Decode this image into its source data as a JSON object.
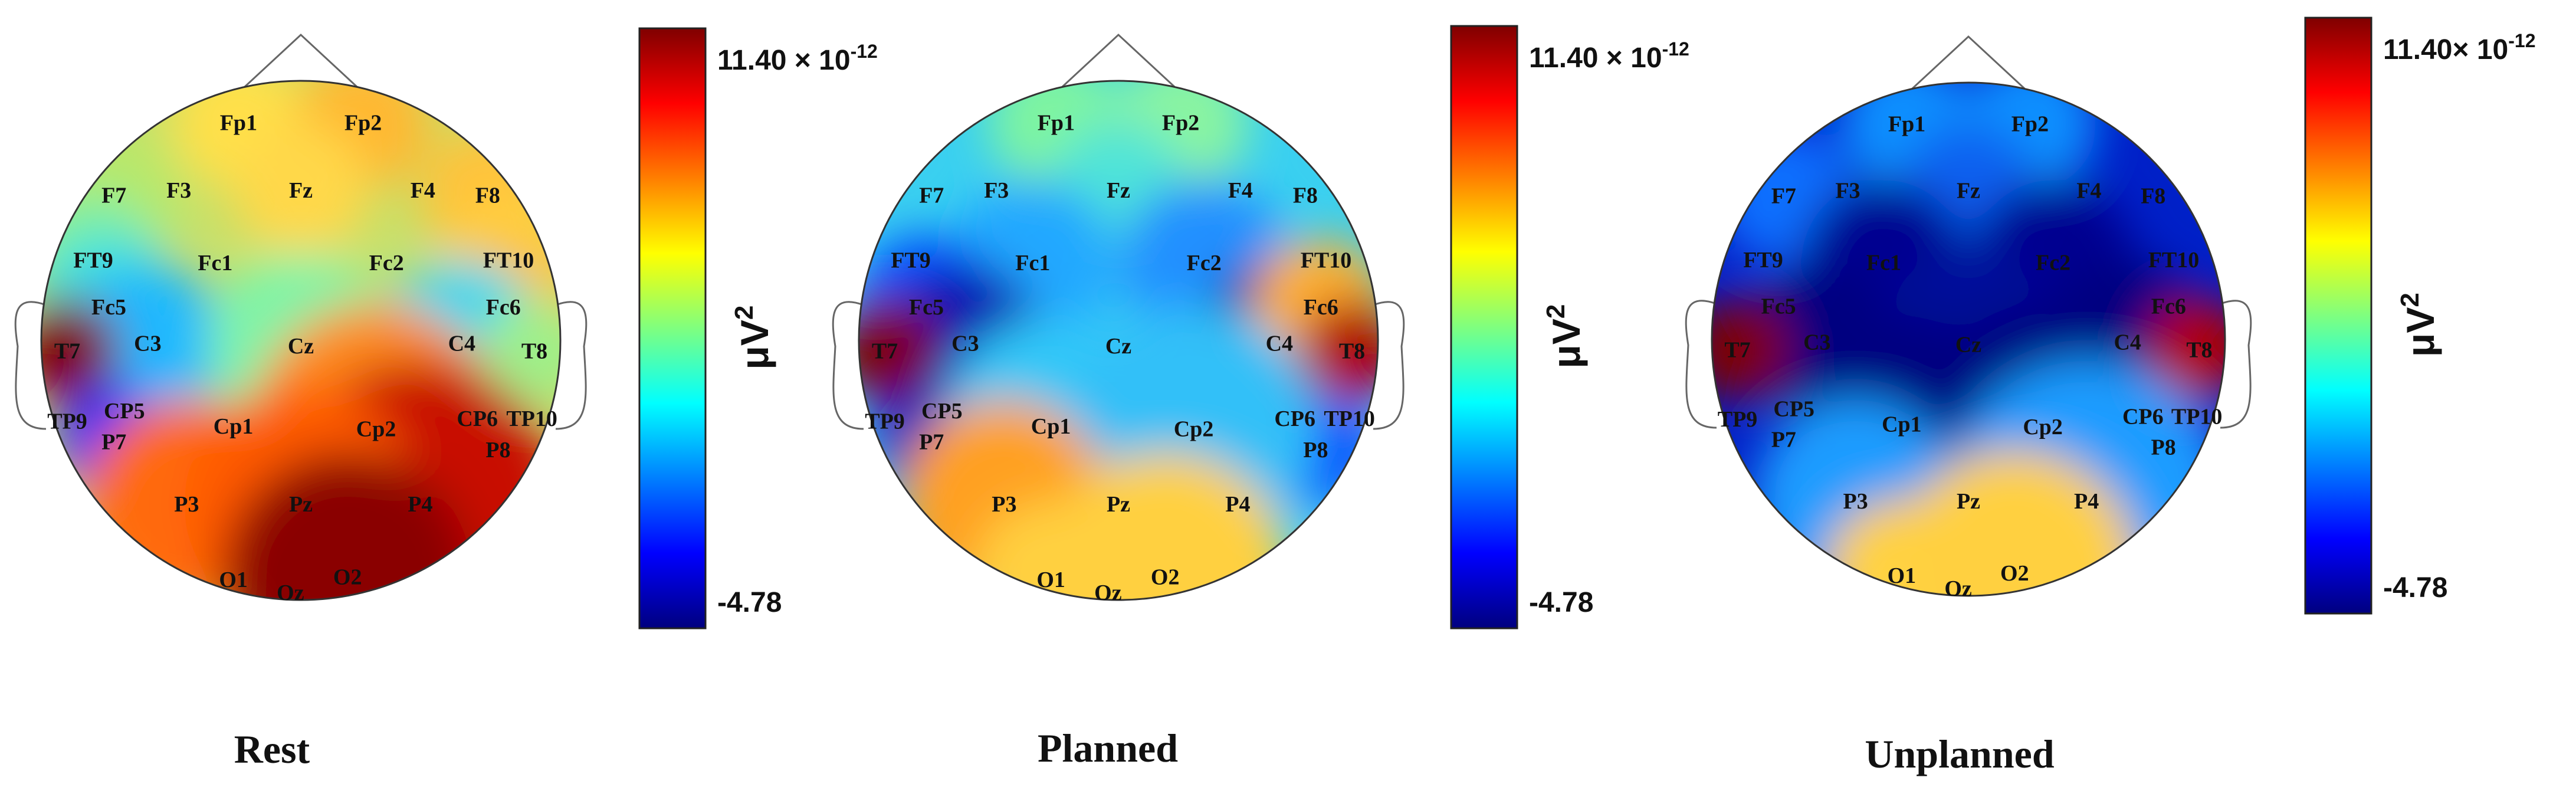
{
  "colorbar": {
    "max_label_base": "11.40",
    "max_label_sep": " × ",
    "max_label_sep_compact": "× ",
    "max_label_mantissa": "10",
    "max_label_exponent": "-12",
    "min_label": "-4.78",
    "unit_base": "μV",
    "unit_exponent": "2",
    "colormap": "jet",
    "color_stops": [
      "#00007f",
      "#0000ff",
      "#007fff",
      "#00ffff",
      "#7fff7f",
      "#ffff00",
      "#ff7f00",
      "#ff0000",
      "#7f0000"
    ]
  },
  "electrodes": [
    "Fp1",
    "Fp2",
    "F7",
    "F3",
    "Fz",
    "F4",
    "F8",
    "FT9",
    "Fc1",
    "Fc2",
    "FT10",
    "Fc5",
    "Fc6",
    "T7",
    "C3",
    "Cz",
    "C4",
    "T8",
    "TP9",
    "CP5",
    "CP6",
    "TP10",
    "P7",
    "P8",
    "Cp1",
    "Cp2",
    "P3",
    "Pz",
    "P4",
    "O1",
    "Oz",
    "O2"
  ],
  "panels": [
    {
      "condition": "Rest",
      "compact_colorbar_label": false,
      "background_color": "#c6e06a",
      "regions": [
        {
          "electrode": "Fp1",
          "color": "#ffe04a"
        },
        {
          "electrode": "Fp2",
          "color": "#ffb833"
        },
        {
          "electrode": "Fz",
          "color": "#ffd84a"
        },
        {
          "electrode": "F8",
          "color": "#ffc23a"
        },
        {
          "electrode": "FT10",
          "color": "#ffcf3f"
        },
        {
          "electrode": "Fc6",
          "color": "#ffc03a"
        },
        {
          "electrode": "F7",
          "color": "#b8e86a"
        },
        {
          "electrode": "FT9",
          "color": "#7ff0a0"
        },
        {
          "electrode": "Fc5",
          "color": "#40e0e0"
        },
        {
          "electrode": "C3",
          "color": "#1ab8ff"
        },
        {
          "electrode": "Cz",
          "color": "#7ff4a8"
        },
        {
          "electrode": "C4",
          "color": "#30d8f0"
        },
        {
          "electrode": "T7",
          "color": "#7f0000"
        },
        {
          "electrode": "P7",
          "color": "#0a28ff"
        },
        {
          "electrode": "T8",
          "color": "#9ef08a"
        },
        {
          "electrode": "Cp2",
          "color": "#ff8a1a"
        },
        {
          "electrode": "P4",
          "color": "#c81000"
        },
        {
          "electrode": "P3",
          "color": "#ff6a10"
        },
        {
          "electrode": "Pz",
          "color": "#ff5a00"
        },
        {
          "electrode": "O2",
          "color": "#8a0000"
        }
      ]
    },
    {
      "condition": "Planned",
      "compact_colorbar_label": false,
      "background_color": "#3ad0f0",
      "regions": [
        {
          "electrode": "Fp1",
          "color": "#7ff4a0"
        },
        {
          "electrode": "Fp2",
          "color": "#8af4a0"
        },
        {
          "electrode": "Fz",
          "color": "#50e4d8"
        },
        {
          "electrode": "Fc1",
          "color": "#20a8ff"
        },
        {
          "electrode": "Fc2",
          "color": "#2090ff"
        },
        {
          "electrode": "Fc5",
          "color": "#0050ff"
        },
        {
          "electrode": "C3",
          "color": "#0a10b0"
        },
        {
          "electrode": "C4",
          "color": "#00009a"
        },
        {
          "electrode": "Fc6",
          "color": "#ffb030"
        },
        {
          "electrode": "T7",
          "color": "#7f0000"
        },
        {
          "electrode": "T8",
          "color": "#b00000"
        },
        {
          "electrode": "P7",
          "color": "#0000c0"
        },
        {
          "electrode": "P8",
          "color": "#0040ff"
        },
        {
          "electrode": "Cp1",
          "color": "#30c8f8"
        },
        {
          "electrode": "Cp2",
          "color": "#30c0f8"
        },
        {
          "electrode": "P3",
          "color": "#ffa020"
        },
        {
          "electrode": "O1",
          "color": "#ffd040"
        },
        {
          "electrode": "O2",
          "color": "#ffd040"
        }
      ]
    },
    {
      "condition": "Unplanned",
      "compact_colorbar_label": true,
      "background_color": "#0020c8",
      "regions": [
        {
          "electrode": "Fp1",
          "color": "#0a90ff"
        },
        {
          "electrode": "Fp2",
          "color": "#0a90ff"
        },
        {
          "electrode": "F7",
          "color": "#0a70ff"
        },
        {
          "electrode": "Fz",
          "color": "#0a60f0"
        },
        {
          "electrode": "Fc1",
          "color": "#000090"
        },
        {
          "electrode": "Fc2",
          "color": "#000090"
        },
        {
          "electrode": "C3",
          "color": "#000080"
        },
        {
          "electrode": "C4",
          "color": "#000080"
        },
        {
          "electrode": "Cz",
          "color": "#000a9a"
        },
        {
          "electrode": "Cp1",
          "color": "#000080"
        },
        {
          "electrode": "Cp2",
          "color": "#000080"
        },
        {
          "electrode": "T7",
          "color": "#7f0000"
        },
        {
          "electrode": "T8",
          "color": "#b00000"
        },
        {
          "electrode": "P3",
          "color": "#1a9cff"
        },
        {
          "electrode": "P4",
          "color": "#1a9cff"
        },
        {
          "electrode": "O1",
          "color": "#ffd040"
        },
        {
          "electrode": "Oz",
          "color": "#ffe050"
        },
        {
          "electrode": "O2",
          "color": "#ffd040"
        }
      ]
    }
  ]
}
